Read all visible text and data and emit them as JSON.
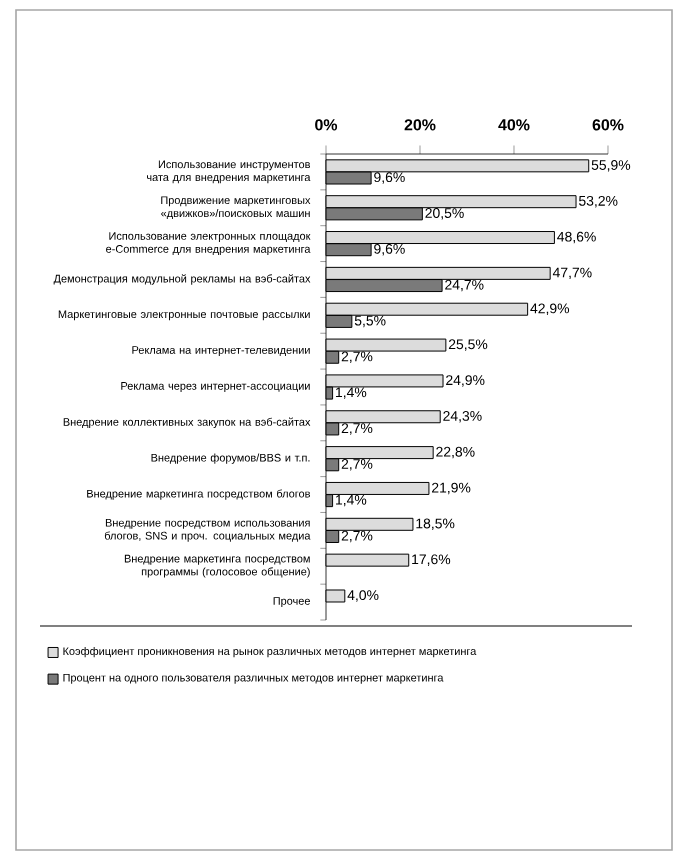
{
  "chart_data": {
    "type": "bar",
    "orientation": "horizontal",
    "categories": [
      "Использование инструментов чата для внедрения маркетинга",
      "Продвижение маркетинговых «движков»/поисковых машин",
      "Использование электронных площадок e-Commerce для внедрения маркетинга",
      "Демонстрация модульной рекламы на вэб-сайтах",
      "Маркетинговые электронные почтовые рассылки",
      "Реклама на интернет-телевидении",
      "Реклама через интернет-ассоциации",
      "Внедрение коллективных закупок на вэб-сайтах",
      "Внедрение форумов/BBS и т.п.",
      "Внедрение маркетинга посредством блогов",
      "Внедрение посредством использования блогов, SNS и проч. социальных медиа",
      "Внедрение маркетинга посредством программы (голосовое общение)",
      "Прочее"
    ],
    "series": [
      {
        "name": "Коэффициент проникновения на рынок различных методов интернет маркетинга",
        "color": "#dcdcdc",
        "values": [
          55.9,
          53.2,
          48.6,
          47.7,
          42.9,
          25.5,
          24.9,
          24.3,
          22.8,
          21.9,
          18.5,
          17.6,
          4.0
        ],
        "value_labels": [
          "55,9%",
          "53,2%",
          "48,6%",
          "47,7%",
          "42,9%",
          "25,5%",
          "24,9%",
          "24,3%",
          "22,8%",
          "21,9%",
          "18,5%",
          "17,6%",
          "4,0%"
        ]
      },
      {
        "name": "Процент на одного пользователя различных методов интернет маркетинга",
        "color": "#7a7a7a",
        "values": [
          9.6,
          20.5,
          9.6,
          24.7,
          5.5,
          2.7,
          1.4,
          2.7,
          2.7,
          1.4,
          2.7,
          null,
          null
        ],
        "value_labels": [
          "9,6%",
          "20,5%",
          "9,6%",
          "24,7%",
          "5,5%",
          "2,7%",
          "1,4%",
          "2,7%",
          "2,7%",
          "1,4%",
          "2,7%",
          null,
          null
        ]
      }
    ],
    "xlim": [
      0,
      60
    ],
    "xticks": [
      {
        "value": 0,
        "label": "0%"
      },
      {
        "value": 20,
        "label": "20%"
      },
      {
        "value": 40,
        "label": "40%"
      },
      {
        "value": 60,
        "label": "60%"
      }
    ],
    "legend": "bottom"
  }
}
